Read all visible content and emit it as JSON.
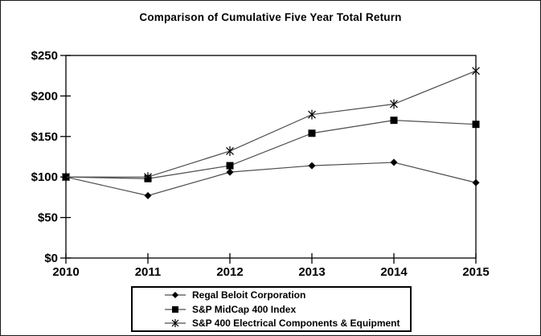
{
  "window": {
    "background": "#ffffff",
    "border_color": "#1a1a1a"
  },
  "chart_data": {
    "type": "line",
    "title": "Comparison of Cumulative Five Year Total Return",
    "x": [
      "2010",
      "2011",
      "2012",
      "2013",
      "2014",
      "2015"
    ],
    "series": [
      {
        "name": "Regal Beloit Corporation",
        "marker": "diamond",
        "values": [
          100,
          77,
          106,
          114,
          118,
          93
        ]
      },
      {
        "name": "S&P MidCap 400 Index",
        "marker": "square",
        "values": [
          100,
          98,
          114,
          154,
          170,
          165
        ]
      },
      {
        "name": "S&P 400 Electrical Components & Equipment",
        "marker": "asterisk",
        "values": [
          100,
          100,
          132,
          177,
          190,
          231
        ]
      }
    ],
    "xlabel": "",
    "ylabel": "",
    "ylim": [
      0,
      250
    ],
    "ytick_step": 50,
    "ytick_labels": [
      "$0",
      "$50",
      "$100",
      "$150",
      "$200",
      "$250"
    ],
    "grid": false,
    "legend_position": "bottom-center",
    "colors": {
      "line": "#4d4d4d",
      "marker": "#000000",
      "axis": "#000000",
      "text": "#000000"
    }
  }
}
